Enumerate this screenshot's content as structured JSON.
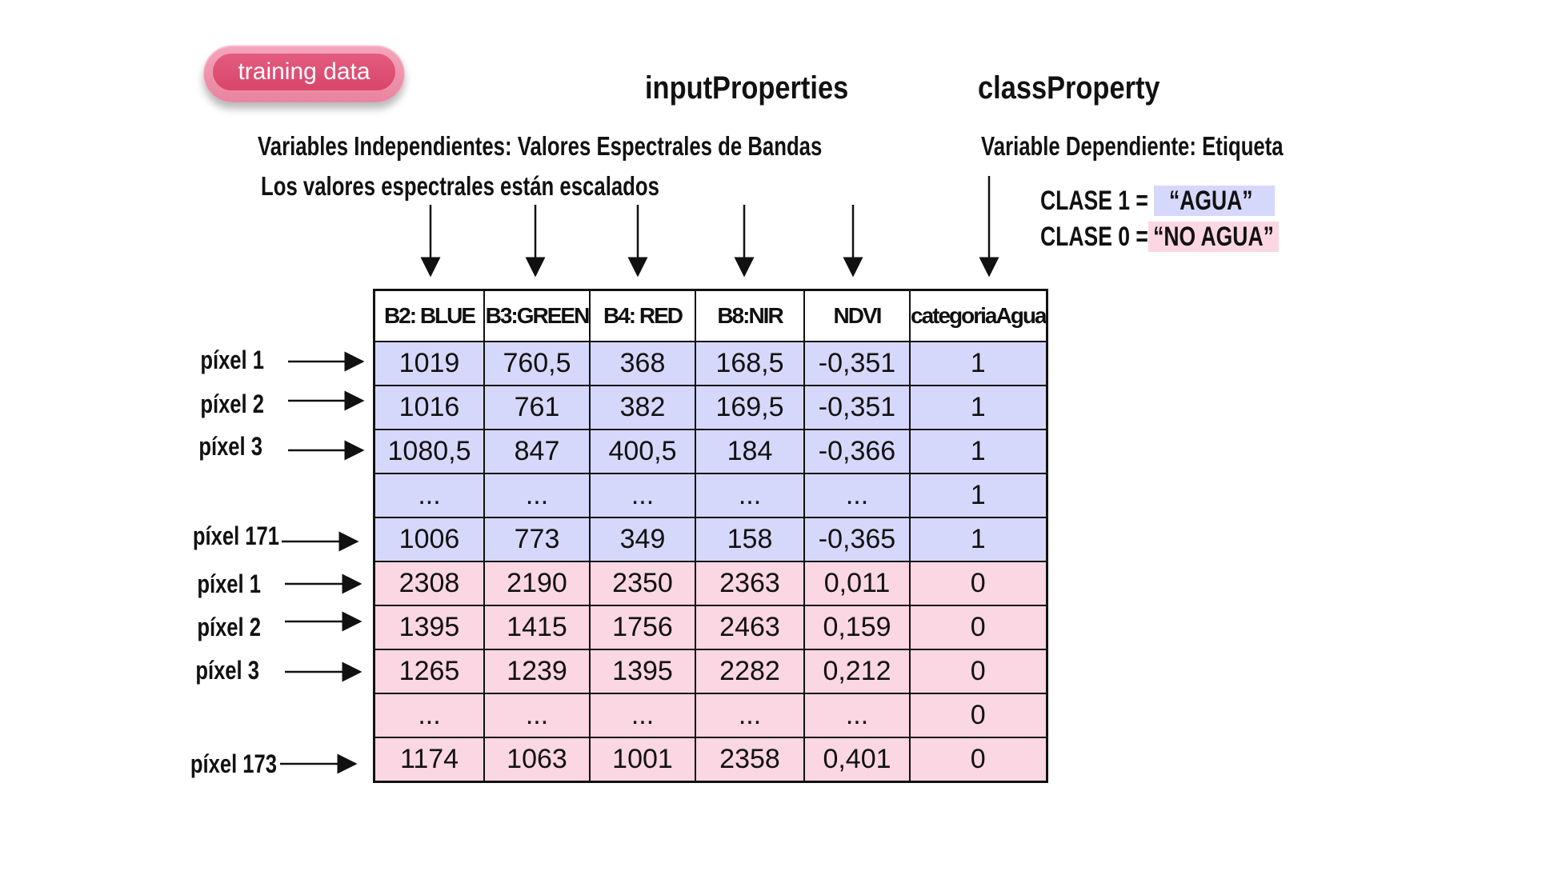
{
  "badge": {
    "label": "training data"
  },
  "headings": {
    "input": "inputProperties",
    "class": "classProperty"
  },
  "descriptions": {
    "independent": "Variables Independientes: Valores Espectrales de Bandas",
    "scaled": "Los valores espectrales están escalados",
    "dependent": "Variable Dependiente: Etiqueta"
  },
  "legend": {
    "clase1_prefix": "CLASE 1 =",
    "clase1_value": "“AGUA”",
    "clase0_prefix": "CLASE 0 =",
    "clase0_value": "“NO AGUA”",
    "water_color": "#d6d8fb",
    "land_color": "#fbd6e3"
  },
  "table": {
    "columns": [
      "B2: BLUE",
      "B3:GREEN",
      "B4: RED",
      "B8:NIR",
      "NDVI",
      "categoriaAgua"
    ],
    "rows": [
      {
        "label": "píxel 1",
        "cls": "water",
        "cells": [
          "1019",
          "760,5",
          "368",
          "168,5",
          "-0,351",
          "1"
        ]
      },
      {
        "label": "píxel 2",
        "cls": "water",
        "cells": [
          "1016",
          "761",
          "382",
          "169,5",
          "-0,351",
          "1"
        ]
      },
      {
        "label": "píxel 3",
        "cls": "water",
        "cells": [
          "1080,5",
          "847",
          "400,5",
          "184",
          "-0,366",
          "1"
        ]
      },
      {
        "label": "",
        "cls": "water",
        "cells": [
          "...",
          "...",
          "...",
          "...",
          "...",
          "1"
        ]
      },
      {
        "label": "píxel 171",
        "cls": "water",
        "cells": [
          "1006",
          "773",
          "349",
          "158",
          "-0,365",
          "1"
        ]
      },
      {
        "label": "píxel 1",
        "cls": "land",
        "cells": [
          "2308",
          "2190",
          "2350",
          "2363",
          "0,011",
          "0"
        ]
      },
      {
        "label": "píxel 2",
        "cls": "land",
        "cells": [
          "1395",
          "1415",
          "1756",
          "2463",
          "0,159",
          "0"
        ]
      },
      {
        "label": "píxel 3",
        "cls": "land",
        "cells": [
          "1265",
          "1239",
          "1395",
          "2282",
          "0,212",
          "0"
        ]
      },
      {
        "label": "",
        "cls": "land",
        "cells": [
          "...",
          "...",
          "...",
          "...",
          "...",
          "0"
        ]
      },
      {
        "label": "píxel 173",
        "cls": "land",
        "cells": [
          "1174",
          "1063",
          "1001",
          "2358",
          "0,401",
          "0"
        ]
      }
    ]
  }
}
